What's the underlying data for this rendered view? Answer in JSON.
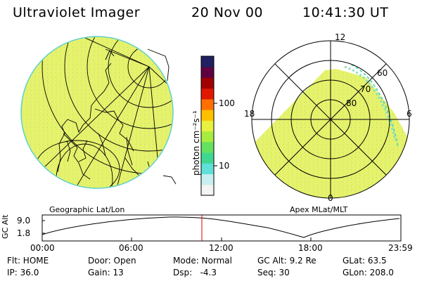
{
  "header": {
    "instrument": "Ultraviolet Imager",
    "date": "20 Nov 00",
    "time": "10:41:30 UT"
  },
  "colorbar": {
    "unit_label": "photon cm⁻²s⁻¹",
    "ticks": [
      "100",
      "10"
    ],
    "scale": "log",
    "colors": [
      "#f4f4f4",
      "#c8eef0",
      "#5fe0d8",
      "#40d890",
      "#66e060",
      "#a8ec40",
      "#e8f040",
      "#ffc000",
      "#ff7000",
      "#e01800",
      "#a00000",
      "#600040",
      "#202060"
    ]
  },
  "left_panel": {
    "caption": "Geographic Lat/Lon",
    "fill_color": "#e6f26e"
  },
  "right_panel": {
    "caption": "Apex MLat/MLT",
    "mlt_labels": {
      "top": "12",
      "right": "6",
      "bottom": "0",
      "left": "18"
    },
    "lat_labels": [
      "60",
      "70",
      "80"
    ]
  },
  "altitude_plot": {
    "ylabel": "GC Alt",
    "yticks": [
      "9.0",
      "1.8"
    ],
    "xticks": [
      "00:00",
      "06:00",
      "12:00",
      "18:00",
      "23:59"
    ],
    "marker_color": "#dd0000"
  },
  "status": {
    "flt": "Flt: HOME",
    "door": "Door: Open",
    "mode": "Mode: Normal",
    "gcalt": "GC Alt: 9.2 Re",
    "glat": "GLat: 63.5",
    "ip": "IP: 36.0",
    "gain": "Gain: 13",
    "dsp": "Dsp:   -4.3",
    "seq": "Seq: 30",
    "glon": "GLon: 208.0"
  }
}
